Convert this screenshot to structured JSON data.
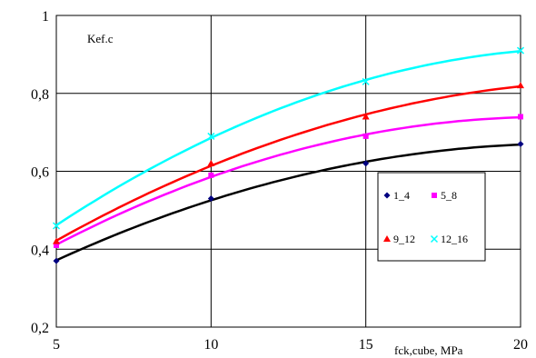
{
  "chart_data": {
    "type": "line",
    "x": [
      5,
      10,
      15,
      20
    ],
    "ylabel": "Kef.c",
    "xlabel": "fck,cube, MPa",
    "xlim": [
      5,
      20
    ],
    "ylim": [
      0.2,
      1
    ],
    "x_ticks": [
      "5",
      "10",
      "15",
      "20"
    ],
    "y_ticks": [
      "0,2",
      "0,4",
      "0,6",
      "0,8",
      "1"
    ],
    "grid": true,
    "legend_position": "right",
    "series": [
      {
        "name": "1_4",
        "values": [
          0.37,
          0.53,
          0.62,
          0.67
        ],
        "color": "#000000",
        "marker_color": "#000080",
        "marker": "diamond"
      },
      {
        "name": "5_8",
        "values": [
          0.41,
          0.59,
          0.69,
          0.74
        ],
        "color": "#ff00ff",
        "marker_color": "#ff00ff",
        "marker": "square"
      },
      {
        "name": "9_12",
        "values": [
          0.42,
          0.62,
          0.74,
          0.82
        ],
        "color": "#ff0000",
        "marker_color": "#ff0000",
        "marker": "triangle"
      },
      {
        "name": "12_16",
        "values": [
          0.46,
          0.69,
          0.83,
          0.91
        ],
        "color": "#00ffff",
        "marker_color": "#00ffff",
        "marker": "x"
      }
    ]
  }
}
